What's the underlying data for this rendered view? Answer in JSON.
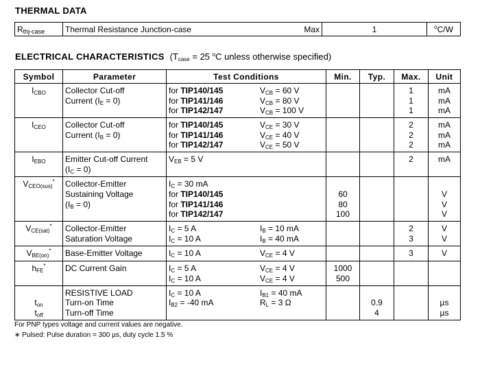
{
  "thermal": {
    "heading": "THERMAL DATA",
    "symbol": "R",
    "symbol_sub": "thj-case",
    "parameter": "Thermal  Resistance  Junction-case",
    "qualifier": "Max",
    "value": "1",
    "unit_sup": "o",
    "unit": "C/W"
  },
  "electrical": {
    "heading": "ELECTRICAL  CHARACTERISTICS",
    "cond_open": "(T",
    "cond_sub": "case",
    "cond_mid": " = 25 ",
    "cond_sup": "o",
    "cond_end": "C unless otherwise specified)",
    "headers": [
      "Symbol",
      "Parameter",
      "Test Conditions",
      "Min.",
      "Typ.",
      "Max.",
      "Unit"
    ],
    "rows": [
      {
        "h": 50,
        "symbol": [
          [
            {
              "t": "I"
            },
            {
              "t": "CBO",
              "s": "sub"
            }
          ]
        ],
        "param": [
          [
            {
              "t": "Collector Cut-off"
            }
          ],
          [
            {
              "t": "Current (I"
            },
            {
              "t": "E",
              "s": "sub"
            },
            {
              "t": " = 0)"
            }
          ]
        ],
        "testA": [
          [
            {
              "t": "for "
            },
            {
              "t": "TIP140/145",
              "s": "b"
            }
          ],
          [
            {
              "t": "for "
            },
            {
              "t": "TIP141/146",
              "s": "b"
            }
          ],
          [
            {
              "t": "for "
            },
            {
              "t": "TIP142/147",
              "s": "b"
            }
          ]
        ],
        "testB": [
          [
            {
              "t": "V"
            },
            {
              "t": "CB",
              "s": "sub"
            },
            {
              "t": " = 60 V"
            }
          ],
          [
            {
              "t": "V"
            },
            {
              "t": "CB",
              "s": "sub"
            },
            {
              "t": " = 80 V"
            }
          ],
          [
            {
              "t": "V"
            },
            {
              "t": "CB",
              "s": "sub"
            },
            {
              "t": " = 100 V"
            }
          ]
        ],
        "min": [],
        "typ": [],
        "max": [
          "1",
          "1",
          "1"
        ],
        "unit": [
          "mA",
          "mA",
          "mA"
        ]
      },
      {
        "h": 50,
        "symbol": [
          [
            {
              "t": "I"
            },
            {
              "t": "CEO",
              "s": "sub"
            }
          ]
        ],
        "param": [
          [
            {
              "t": "Collector Cut-off"
            }
          ],
          [
            {
              "t": "Current (I"
            },
            {
              "t": "B",
              "s": "sub"
            },
            {
              "t": " = 0)"
            }
          ]
        ],
        "testA": [
          [
            {
              "t": "for "
            },
            {
              "t": "TIP140/145",
              "s": "b"
            }
          ],
          [
            {
              "t": "for "
            },
            {
              "t": "TIP141/146",
              "s": "b"
            }
          ],
          [
            {
              "t": "for "
            },
            {
              "t": "TIP142/147",
              "s": "b"
            }
          ]
        ],
        "testB": [
          [
            {
              "t": "V"
            },
            {
              "t": "CE",
              "s": "sub"
            },
            {
              "t": " = 30 V"
            }
          ],
          [
            {
              "t": "V"
            },
            {
              "t": "CE",
              "s": "sub"
            },
            {
              "t": " = 40 V"
            }
          ],
          [
            {
              "t": "V"
            },
            {
              "t": "CE",
              "s": "sub"
            },
            {
              "t": " = 50 V"
            }
          ]
        ],
        "min": [],
        "typ": [],
        "max": [
          "2",
          "2",
          "2"
        ],
        "unit": [
          "mA",
          "mA",
          "mA"
        ]
      },
      {
        "h": 36,
        "symbol": [
          [
            {
              "t": "I"
            },
            {
              "t": "EBO",
              "s": "sub"
            }
          ]
        ],
        "param": [
          [
            {
              "t": "Emitter Cut-off Current"
            }
          ],
          [
            {
              "t": "(I"
            },
            {
              "t": "C",
              "s": "sub"
            },
            {
              "t": " = 0)"
            }
          ]
        ],
        "testA": [
          [
            {
              "t": "V"
            },
            {
              "t": "EB",
              "s": "sub"
            },
            {
              "t": " = 5 V"
            }
          ]
        ],
        "testB": [],
        "min": [],
        "typ": [],
        "max": [
          "2"
        ],
        "unit": [
          "mA"
        ]
      },
      {
        "h": 65,
        "symbol": [
          [
            {
              "t": "V"
            },
            {
              "t": "CEO(sus)",
              "s": "sub"
            },
            {
              "t": "*",
              "s": "sup"
            }
          ]
        ],
        "param": [
          [
            {
              "t": "Collector-Emitter"
            }
          ],
          [
            {
              "t": "Sustaining Voltage"
            }
          ],
          [
            {
              "t": "(I"
            },
            {
              "t": "B",
              "s": "sub"
            },
            {
              "t": " = 0)"
            }
          ]
        ],
        "testA": [
          [
            {
              "t": "I"
            },
            {
              "t": "C",
              "s": "sub"
            },
            {
              "t": " = 30 mA"
            }
          ],
          [
            {
              "t": "for "
            },
            {
              "t": "TIP140/145",
              "s": "b"
            }
          ],
          [
            {
              "t": "for "
            },
            {
              "t": "TIP141/146",
              "s": "b"
            }
          ],
          [
            {
              "t": "for "
            },
            {
              "t": "TIP142/147",
              "s": "b"
            }
          ]
        ],
        "testB": [],
        "min": [
          "",
          "60",
          "80",
          "100"
        ],
        "typ": [],
        "max": [],
        "unit": [
          "",
          "V",
          "V",
          "V"
        ]
      },
      {
        "h": 36,
        "symbol": [
          [
            {
              "t": "V"
            },
            {
              "t": "CE(sat)",
              "s": "sub"
            },
            {
              "t": "*",
              "s": "sup"
            }
          ]
        ],
        "param": [
          [
            {
              "t": "Collector-Emitter"
            }
          ],
          [
            {
              "t": "Saturation Voltage"
            }
          ]
        ],
        "testA": [
          [
            {
              "t": "I"
            },
            {
              "t": "C",
              "s": "sub"
            },
            {
              "t": " = 5 A"
            }
          ],
          [
            {
              "t": "I"
            },
            {
              "t": "C",
              "s": "sub"
            },
            {
              "t": " = 10 A"
            }
          ]
        ],
        "testB": [
          [
            {
              "t": "I"
            },
            {
              "t": "B",
              "s": "sub"
            },
            {
              "t": " = 10 mA"
            }
          ],
          [
            {
              "t": "I"
            },
            {
              "t": "B",
              "s": "sub"
            },
            {
              "t": " = 40 mA"
            }
          ]
        ],
        "min": [],
        "typ": [],
        "max": [
          "2",
          "3"
        ],
        "unit": [
          "V",
          "V"
        ]
      },
      {
        "h": 22,
        "symbol": [
          [
            {
              "t": "V"
            },
            {
              "t": "BE(on)",
              "s": "sub"
            },
            {
              "t": "*",
              "s": "sup"
            }
          ]
        ],
        "param": [
          [
            {
              "t": "Base-Emitter Voltage"
            }
          ]
        ],
        "testA": [
          [
            {
              "t": "I"
            },
            {
              "t": "C",
              "s": "sub"
            },
            {
              "t": " = 10 A"
            }
          ]
        ],
        "testB": [
          [
            {
              "t": "V"
            },
            {
              "t": "CE",
              "s": "sub"
            },
            {
              "t": " = 4 V"
            }
          ]
        ],
        "min": [],
        "typ": [],
        "max": [
          "3"
        ],
        "unit": [
          "V"
        ]
      },
      {
        "h": 35,
        "symbol": [
          [
            {
              "t": "h"
            },
            {
              "t": "FE",
              "s": "sub"
            },
            {
              "t": "*",
              "s": "sup"
            }
          ]
        ],
        "param": [
          [
            {
              "t": "DC Current Gain"
            }
          ]
        ],
        "testA": [
          [
            {
              "t": "I"
            },
            {
              "t": "C",
              "s": "sub"
            },
            {
              "t": " = 5 A"
            }
          ],
          [
            {
              "t": "I"
            },
            {
              "t": "C",
              "s": "sub"
            },
            {
              "t": " = 10 A"
            }
          ]
        ],
        "testB": [
          [
            {
              "t": "V"
            },
            {
              "t": "CE",
              "s": "sub"
            },
            {
              "t": " = 4 V"
            }
          ],
          [
            {
              "t": "V"
            },
            {
              "t": "CE",
              "s": "sub"
            },
            {
              "t": " = 4 V"
            }
          ]
        ],
        "min": [
          "1000",
          "500"
        ],
        "typ": [],
        "max": [],
        "unit": []
      },
      {
        "h": 50,
        "symbol": [
          [],
          [
            {
              "t": "t"
            },
            {
              "t": "on",
              "s": "sub"
            }
          ],
          [
            {
              "t": "t"
            },
            {
              "t": "off",
              "s": "sub"
            }
          ]
        ],
        "param": [
          [
            {
              "t": "RESISTIVE LOAD"
            }
          ],
          [
            {
              "t": "Turn-on Time"
            }
          ],
          [
            {
              "t": "Turn-off Time"
            }
          ]
        ],
        "testA": [
          [
            {
              "t": "I"
            },
            {
              "t": "C",
              "s": "sub"
            },
            {
              "t": " = 10 A"
            }
          ],
          [
            {
              "t": "I"
            },
            {
              "t": "B2",
              "s": "sub"
            },
            {
              "t": " = -40 mA"
            }
          ]
        ],
        "testB": [
          [
            {
              "t": "I"
            },
            {
              "t": "B1",
              "s": "sub"
            },
            {
              "t": " = 40 mA"
            }
          ],
          [
            {
              "t": "R"
            },
            {
              "t": "L",
              "s": "sub"
            },
            {
              "t": " = 3 Ω"
            }
          ]
        ],
        "min": [],
        "typ": [
          "",
          "0.9",
          "4"
        ],
        "max": [],
        "unit": [
          "",
          "µs",
          "µs"
        ]
      }
    ],
    "footnotes": [
      "For PNP types voltage and current values are negative.",
      "∗ Pulsed: Pulse duration = 300 µs, duty cycle  1.5 %"
    ]
  }
}
